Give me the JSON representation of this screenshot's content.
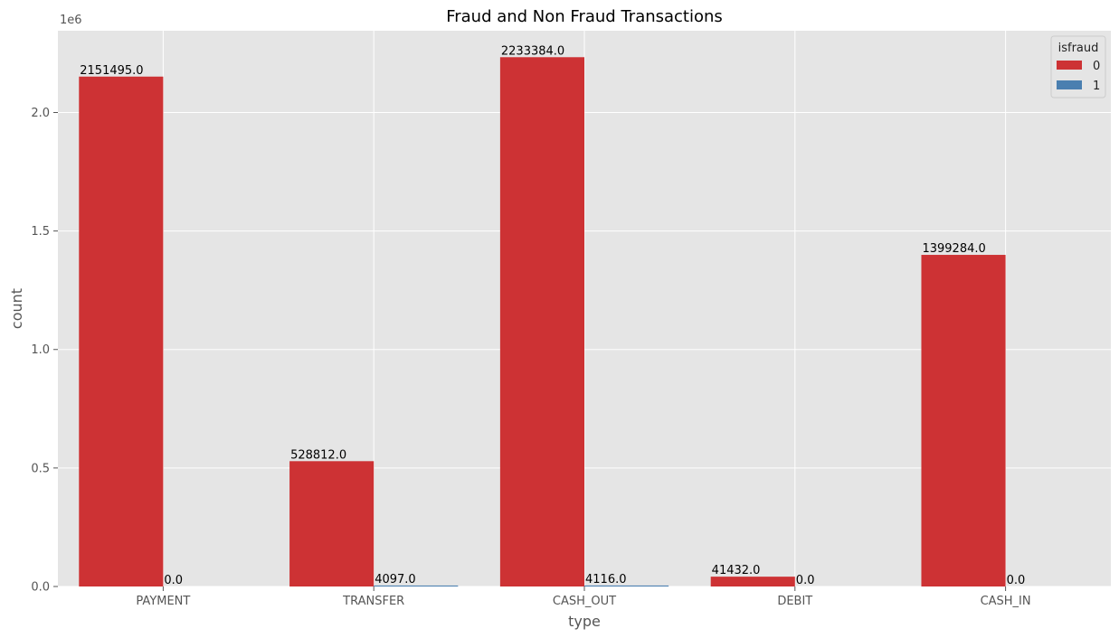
{
  "chart_data": {
    "type": "bar",
    "title": "Fraud and Non Fraud Transactions",
    "xlabel": "type",
    "ylabel": "count",
    "offset_text": "1e6",
    "categories": [
      "PAYMENT",
      "TRANSFER",
      "CASH_OUT",
      "DEBIT",
      "CASH_IN"
    ],
    "series": [
      {
        "name": "0",
        "color": "#cd3234",
        "values": [
          2151495,
          528812,
          2233384,
          41432,
          1399284
        ],
        "labels": [
          "2151495.0",
          "528812.0",
          "2233384.0",
          "41432.0",
          "1399284.0"
        ]
      },
      {
        "name": "1",
        "color": "#4a7fb0",
        "values": [
          0,
          4097,
          4116,
          0,
          0
        ],
        "labels": [
          "0.0",
          "4097.0",
          "4116.0",
          "0.0",
          "0.0"
        ]
      }
    ],
    "yticks": [
      0,
      0.5,
      1.0,
      1.5,
      2.0
    ],
    "ytick_labels": [
      "0.0",
      "0.5",
      "1.0",
      "1.5",
      "2.0"
    ],
    "ylim": [
      0,
      2345053
    ],
    "grid": true,
    "legend_title": "isfraud",
    "legend_position": "top-right",
    "background": "#e5e5e5"
  }
}
